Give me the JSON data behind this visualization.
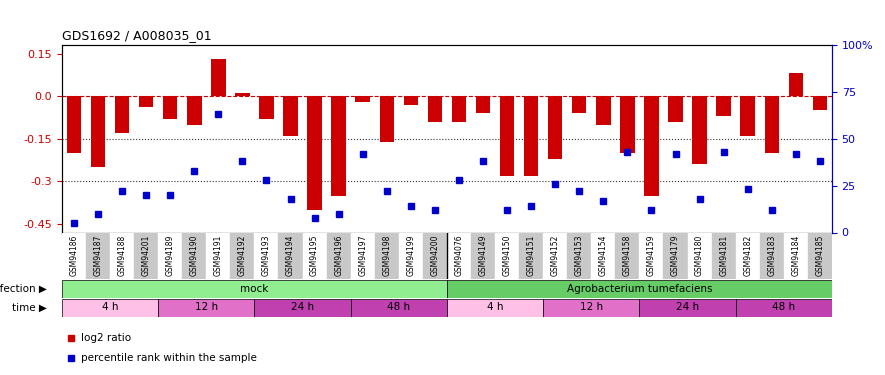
{
  "title": "GDS1692 / A008035_01",
  "samples": [
    "GSM94186",
    "GSM94187",
    "GSM94188",
    "GSM94201",
    "GSM94189",
    "GSM94190",
    "GSM94191",
    "GSM94192",
    "GSM94193",
    "GSM94194",
    "GSM94195",
    "GSM94196",
    "GSM94197",
    "GSM94198",
    "GSM94199",
    "GSM94200",
    "GSM94076",
    "GSM94149",
    "GSM94150",
    "GSM94151",
    "GSM94152",
    "GSM94153",
    "GSM94154",
    "GSM94158",
    "GSM94159",
    "GSM94179",
    "GSM94180",
    "GSM94181",
    "GSM94182",
    "GSM94183",
    "GSM94184",
    "GSM94185"
  ],
  "log2_ratio": [
    -0.2,
    -0.25,
    -0.13,
    -0.04,
    -0.08,
    -0.1,
    0.13,
    0.01,
    -0.08,
    -0.14,
    -0.4,
    -0.35,
    -0.02,
    -0.16,
    -0.03,
    -0.09,
    -0.09,
    -0.06,
    -0.28,
    -0.28,
    -0.22,
    -0.06,
    -0.1,
    -0.2,
    -0.35,
    -0.09,
    -0.24,
    -0.07,
    -0.14,
    -0.2,
    0.08,
    -0.05
  ],
  "percentile_rank": [
    5,
    10,
    22,
    20,
    20,
    33,
    63,
    38,
    28,
    18,
    8,
    10,
    42,
    22,
    14,
    12,
    28,
    38,
    12,
    14,
    26,
    22,
    17,
    43,
    12,
    42,
    18,
    43,
    23,
    12,
    42,
    38
  ],
  "infection_groups": [
    {
      "label": "mock",
      "start": 0,
      "end": 16,
      "color": "#90ee90"
    },
    {
      "label": "Agrobacterium tumefaciens",
      "start": 16,
      "end": 32,
      "color": "#66cc66"
    }
  ],
  "time_groups": [
    {
      "label": "4 h",
      "start": 0,
      "end": 4
    },
    {
      "label": "12 h",
      "start": 4,
      "end": 8
    },
    {
      "label": "24 h",
      "start": 8,
      "end": 12
    },
    {
      "label": "48 h",
      "start": 12,
      "end": 16
    },
    {
      "label": "4 h",
      "start": 16,
      "end": 20
    },
    {
      "label": "12 h",
      "start": 20,
      "end": 24
    },
    {
      "label": "24 h",
      "start": 24,
      "end": 28
    },
    {
      "label": "48 h",
      "start": 28,
      "end": 32
    }
  ],
  "time_colors": [
    "#ffc0e8",
    "#e070c8",
    "#c040b0",
    "#c040b0",
    "#ffc0e8",
    "#e070c8",
    "#c040b0",
    "#c040b0"
  ],
  "bar_color": "#cc0000",
  "dot_color": "#0000cc",
  "ylim_left": [
    -0.48,
    0.18
  ],
  "ylim_right": [
    0,
    100
  ],
  "yticks_left": [
    0.15,
    0.0,
    -0.15,
    -0.3,
    -0.45
  ],
  "yticks_right": [
    100,
    75,
    50,
    25,
    0
  ],
  "ytick_labels_right": [
    "100%",
    "75",
    "50",
    "25",
    "0"
  ],
  "hlines": [
    0.0,
    -0.15,
    -0.3
  ],
  "hline_styles": [
    "--",
    ":",
    ":"
  ],
  "hline_colors": [
    "#cc0000",
    "#333333",
    "#333333"
  ],
  "bar_width": 0.6,
  "dot_size": 5
}
